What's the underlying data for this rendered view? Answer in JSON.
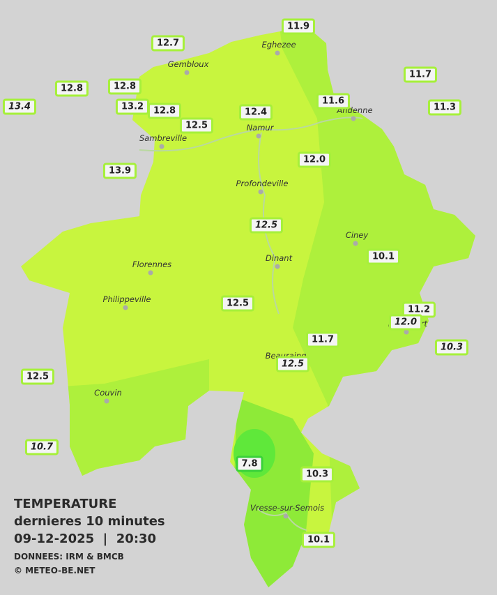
{
  "map": {
    "towns": [
      "Eghezee",
      "Gembloux",
      "Andenne",
      "Namur",
      "Sambreville",
      "Profondeville",
      "Ciney",
      "Dinant",
      "Florennes",
      "Philippeville",
      "Rochefort",
      "Beauraing",
      "Couvin",
      "Vresse-sur-Semois"
    ],
    "stations": [
      {
        "label": "11.9",
        "italic": false
      },
      {
        "label": "12.7",
        "italic": false
      },
      {
        "label": "12.8",
        "italic": false
      },
      {
        "label": "12.8",
        "italic": false
      },
      {
        "label": "11.7",
        "italic": false
      },
      {
        "label": "13.4",
        "italic": true
      },
      {
        "label": "13.2",
        "italic": false
      },
      {
        "label": "12.8",
        "italic": false
      },
      {
        "label": "11.6",
        "italic": false
      },
      {
        "label": "11.3",
        "italic": false
      },
      {
        "label": "12.4",
        "italic": false
      },
      {
        "label": "12.5",
        "italic": false
      },
      {
        "label": "12.0",
        "italic": false
      },
      {
        "label": "13.9",
        "italic": false
      },
      {
        "label": "12.5",
        "italic": true
      },
      {
        "label": "10.1",
        "italic": false
      },
      {
        "label": "12.5",
        "italic": false
      },
      {
        "label": "11.2",
        "italic": false
      },
      {
        "label": "12.0",
        "italic": true
      },
      {
        "label": "10.3",
        "italic": true
      },
      {
        "label": "11.7",
        "italic": false
      },
      {
        "label": "12.5",
        "italic": true
      },
      {
        "label": "12.5",
        "italic": false
      },
      {
        "label": "10.7",
        "italic": true
      },
      {
        "label": "7.8",
        "italic": false
      },
      {
        "label": "10.3",
        "italic": false
      },
      {
        "label": "10.1",
        "italic": false
      }
    ],
    "legend": {
      "title": "TEMPERATURE",
      "subtitle": "dernieres 10 minutes",
      "datetime": "09-12-2025  |  20:30",
      "source": "DONNEES: IRM & BMCB",
      "copyright": "© METEO-BE.NET"
    }
  }
}
